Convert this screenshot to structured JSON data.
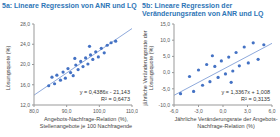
{
  "chart_data": [
    {
      "type": "scatter",
      "title": "5a: Lineare Regression von ANR und LQ",
      "x_label": "Angebots-Nachfrage-Relation (%), Stellenangebote je 100 Nachfragende",
      "y_label": "Lösungsquote (%)",
      "x": [
        84.5,
        85.5,
        86.3,
        87.0,
        88.1,
        88.9,
        89.6,
        90.4,
        91.2,
        92.0,
        92.8,
        93.5,
        94.3,
        95.0,
        95.8,
        96.5,
        97.3,
        98.0,
        98.9,
        99.7,
        100.6,
        101.5,
        102.4,
        103.6,
        105.0,
        97.0,
        92.5
      ],
      "values": [
        15.8,
        17.5,
        16.2,
        17.9,
        16.9,
        18.5,
        17.3,
        19.2,
        18.4,
        17.8,
        19.9,
        19.0,
        20.6,
        19.6,
        21.3,
        20.1,
        21.9,
        21.0,
        22.5,
        21.5,
        23.2,
        22.3,
        23.8,
        24.3,
        24.6,
        23.6,
        21.2
      ],
      "color": "#4472c4",
      "xlim": [
        80,
        110
      ],
      "xticks": [
        {
          "value": 80,
          "label": "80,0"
        },
        {
          "value": 90,
          "label": "90,0"
        },
        {
          "value": 100,
          "label": "100,0"
        },
        {
          "value": 110,
          "label": "110,0"
        }
      ],
      "ylim": [
        12,
        28
      ],
      "yticks": [
        {
          "value": 12,
          "label": "12,0"
        },
        {
          "value": 16,
          "label": "16,0"
        },
        {
          "value": 20,
          "label": "20,0"
        },
        {
          "value": 24,
          "label": "24,0"
        },
        {
          "value": 28,
          "label": "28,0"
        }
      ],
      "trendline": {
        "x": [
          80,
          110
        ],
        "y": [
          13.945,
          27.103
        ],
        "color": "#8faadc"
      },
      "annotations": [
        "y = 0,4386x - 21,143",
        "R² = 0,6473"
      ],
      "grid": false
    },
    {
      "type": "scatter",
      "title": "5b: Lineare Regression der Veränderungsraten von ANR und LQ",
      "x_label": "Jährliche Veränderungsrate der Angebots-Nachfrage-Relation (%)",
      "y_label": "jährliche Veränderungsrate der Lösungsquote (%)",
      "x": [
        -5.2,
        -4.1,
        -3.6,
        -3.0,
        -2.5,
        -2.0,
        -1.6,
        -1.0,
        -0.6,
        -0.2,
        0.3,
        0.7,
        1.2,
        1.6,
        2.0,
        2.6,
        3.1,
        3.7,
        4.3,
        5.0,
        -1.3,
        1.0
      ],
      "values": [
        -6.5,
        -1.2,
        -5.8,
        0.8,
        -3.9,
        2.5,
        -2.8,
        1.9,
        -1.5,
        3.6,
        -0.4,
        4.8,
        0.5,
        6.2,
        2.1,
        7.9,
        3.0,
        9.2,
        4.1,
        8.6,
        5.2,
        -3.0
      ],
      "color": "#4472c4",
      "xlim": [
        -6,
        6
      ],
      "xticks": [
        {
          "value": -6,
          "label": "-6,0"
        },
        {
          "value": -3,
          "label": "-3,0"
        },
        {
          "value": 0,
          "label": "0,0"
        },
        {
          "value": 3,
          "label": "3,0"
        },
        {
          "value": 6,
          "label": "6,0"
        }
      ],
      "ylim": [
        -10,
        15
      ],
      "yticks": [
        {
          "value": -10,
          "label": "-10,0"
        },
        {
          "value": -5,
          "label": "-5,0"
        },
        {
          "value": 0,
          "label": "0,0"
        },
        {
          "value": 5,
          "label": "5,0"
        },
        {
          "value": 10,
          "label": "10,0"
        },
        {
          "value": 15,
          "label": "15,0"
        }
      ],
      "trendline": {
        "x": [
          -6,
          6
        ],
        "y": [
          -7.012,
          9.028
        ],
        "color": "#8faadc"
      },
      "annotations": [
        "y = 1,3367x + 1,008",
        "R² = 0,3135"
      ],
      "grid": false
    }
  ]
}
